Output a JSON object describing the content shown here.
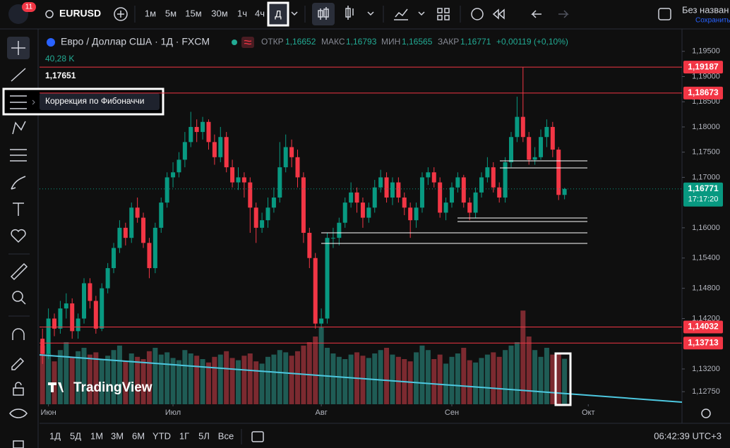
{
  "top_bar": {
    "badge": "11",
    "symbol": "EURUSD",
    "intervals": [
      "1м",
      "5м",
      "15м",
      "30м",
      "1ч",
      "4ч",
      "Д"
    ],
    "layout_name": "Без назван",
    "save": "Сохранить"
  },
  "legend": {
    "title": "Евро / Доллар США · 1Д · FXCM",
    "open_label": "ОТКР",
    "open": "1,16652",
    "high_label": "МАКС",
    "high": "1,16793",
    "low_label": "МИН",
    "low": "1,16565",
    "close_label": "ЗАКР",
    "close": "1,16771",
    "change": "+0,00119 (+0,10%)",
    "volume": "40,28 K",
    "crosshair_price": "1,17651"
  },
  "tooltip": "Коррекция по Фибоначчи",
  "watermark": "TradingView",
  "chart": {
    "type": "candlestick",
    "up_color": "#089981",
    "down_color": "#f23645",
    "ylim": [
      1.125,
      1.1993
    ],
    "yticks": [
      {
        "value": 1.195,
        "label": "1,19500"
      },
      {
        "value": 1.19,
        "label": "1,19000"
      },
      {
        "value": 1.185,
        "label": "1,18500"
      },
      {
        "value": 1.18,
        "label": "1,18000"
      },
      {
        "value": 1.175,
        "label": "1,17500"
      },
      {
        "value": 1.17,
        "label": "1,17000"
      },
      {
        "value": 1.16,
        "label": "1,16000"
      },
      {
        "value": 1.154,
        "label": "1,15400"
      },
      {
        "value": 1.148,
        "label": "1,14800"
      },
      {
        "value": 1.142,
        "label": "1,14200"
      },
      {
        "value": 1.132,
        "label": "1,13200"
      },
      {
        "value": 1.1275,
        "label": "1,12750"
      }
    ],
    "xlim": [
      -0.5,
      107.8
    ],
    "xticks": [
      {
        "value": 1,
        "label": "Июн"
      },
      {
        "value": 22,
        "label": "Июл"
      },
      {
        "value": 47,
        "label": "Авг"
      },
      {
        "value": 69,
        "label": "Сен"
      },
      {
        "value": 92,
        "label": "Окт"
      }
    ],
    "candles": [
      [
        1.138,
        1.14,
        1.133,
        1.135
      ],
      [
        1.135,
        1.144,
        1.134,
        1.142
      ],
      [
        1.142,
        1.143,
        1.1385,
        1.14
      ],
      [
        1.14,
        1.1455,
        1.139,
        1.144
      ],
      [
        1.144,
        1.147,
        1.142,
        1.145
      ],
      [
        1.145,
        1.146,
        1.138,
        1.1395
      ],
      [
        1.1395,
        1.143,
        1.138,
        1.142
      ],
      [
        1.142,
        1.15,
        1.141,
        1.149
      ],
      [
        1.149,
        1.15,
        1.144,
        1.1455
      ],
      [
        1.1455,
        1.1465,
        1.139,
        1.14
      ],
      [
        1.14,
        1.149,
        1.1395,
        1.148
      ],
      [
        1.148,
        1.153,
        1.147,
        1.152
      ],
      [
        1.152,
        1.157,
        1.151,
        1.156
      ],
      [
        1.156,
        1.1615,
        1.155,
        1.16
      ],
      [
        1.16,
        1.161,
        1.1565,
        1.158
      ],
      [
        1.158,
        1.165,
        1.157,
        1.164
      ],
      [
        1.164,
        1.166,
        1.161,
        1.162
      ],
      [
        1.162,
        1.163,
        1.156,
        1.157
      ],
      [
        1.157,
        1.158,
        1.15,
        1.152
      ],
      [
        1.152,
        1.161,
        1.151,
        1.16
      ],
      [
        1.16,
        1.166,
        1.159,
        1.165
      ],
      [
        1.165,
        1.171,
        1.164,
        1.17
      ],
      [
        1.17,
        1.173,
        1.168,
        1.171
      ],
      [
        1.171,
        1.175,
        1.17,
        1.1735
      ],
      [
        1.1735,
        1.179,
        1.172,
        1.177
      ],
      [
        1.177,
        1.183,
        1.176,
        1.18
      ],
      [
        1.18,
        1.1815,
        1.177,
        1.179
      ],
      [
        1.179,
        1.182,
        1.1775,
        1.181
      ],
      [
        1.181,
        1.1815,
        1.1755,
        1.177
      ],
      [
        1.177,
        1.1785,
        1.1725,
        1.174
      ],
      [
        1.174,
        1.18,
        1.173,
        1.178
      ],
      [
        1.178,
        1.179,
        1.171,
        1.172
      ],
      [
        1.172,
        1.1735,
        1.168,
        1.169
      ],
      [
        1.169,
        1.172,
        1.1675,
        1.17
      ],
      [
        1.17,
        1.171,
        1.166,
        1.169
      ],
      [
        1.169,
        1.17,
        1.159,
        1.164
      ],
      [
        1.164,
        1.165,
        1.157,
        1.16
      ],
      [
        1.16,
        1.163,
        1.159,
        1.1615
      ],
      [
        1.1615,
        1.166,
        1.16,
        1.164
      ],
      [
        1.164,
        1.168,
        1.163,
        1.166
      ],
      [
        1.166,
        1.177,
        1.165,
        1.172
      ],
      [
        1.172,
        1.1785,
        1.171,
        1.176
      ],
      [
        1.176,
        1.1775,
        1.172,
        1.174
      ],
      [
        1.174,
        1.1755,
        1.168,
        1.17
      ],
      [
        1.17,
        1.171,
        1.157,
        1.159
      ],
      [
        1.159,
        1.16,
        1.152,
        1.154
      ],
      [
        1.154,
        1.155,
        1.14,
        1.141
      ],
      [
        1.141,
        1.144,
        1.14,
        1.142
      ],
      [
        1.142,
        1.159,
        1.141,
        1.158
      ],
      [
        1.158,
        1.16,
        1.156,
        1.158
      ],
      [
        1.158,
        1.162,
        1.1565,
        1.161
      ],
      [
        1.161,
        1.166,
        1.16,
        1.165
      ],
      [
        1.165,
        1.169,
        1.164,
        1.167
      ],
      [
        1.167,
        1.168,
        1.163,
        1.165
      ],
      [
        1.165,
        1.166,
        1.16,
        1.162
      ],
      [
        1.162,
        1.165,
        1.161,
        1.164
      ],
      [
        1.164,
        1.1695,
        1.163,
        1.168
      ],
      [
        1.168,
        1.1715,
        1.167,
        1.17
      ],
      [
        1.17,
        1.171,
        1.165,
        1.166
      ],
      [
        1.166,
        1.17,
        1.1645,
        1.169
      ],
      [
        1.169,
        1.17,
        1.165,
        1.166
      ],
      [
        1.166,
        1.167,
        1.1625,
        1.164
      ],
      [
        1.164,
        1.165,
        1.158,
        1.1615
      ],
      [
        1.1615,
        1.165,
        1.16,
        1.164
      ],
      [
        1.164,
        1.171,
        1.163,
        1.17
      ],
      [
        1.17,
        1.172,
        1.1685,
        1.171
      ],
      [
        1.171,
        1.172,
        1.168,
        1.169
      ],
      [
        1.169,
        1.17,
        1.162,
        1.163
      ],
      [
        1.163,
        1.166,
        1.1615,
        1.165
      ],
      [
        1.165,
        1.169,
        1.164,
        1.168
      ],
      [
        1.168,
        1.171,
        1.167,
        1.17
      ],
      [
        1.17,
        1.1705,
        1.164,
        1.165
      ],
      [
        1.165,
        1.166,
        1.1615,
        1.163
      ],
      [
        1.163,
        1.168,
        1.162,
        1.167
      ],
      [
        1.167,
        1.171,
        1.166,
        1.17
      ],
      [
        1.17,
        1.174,
        1.169,
        1.172
      ],
      [
        1.172,
        1.173,
        1.167,
        1.168
      ],
      [
        1.168,
        1.169,
        1.165,
        1.166
      ],
      [
        1.166,
        1.174,
        1.165,
        1.173
      ],
      [
        1.173,
        1.179,
        1.172,
        1.178
      ],
      [
        1.178,
        1.186,
        1.177,
        1.182
      ],
      [
        1.182,
        1.19187,
        1.177,
        1.178
      ],
      [
        1.178,
        1.179,
        1.1725,
        1.1735
      ],
      [
        1.1735,
        1.176,
        1.1725,
        1.174
      ],
      [
        1.174,
        1.1795,
        1.1735,
        1.178
      ],
      [
        1.178,
        1.1815,
        1.176,
        1.18
      ],
      [
        1.18,
        1.181,
        1.174,
        1.1755
      ],
      [
        1.1755,
        1.176,
        1.1655,
        1.16652
      ],
      [
        1.16652,
        1.16793,
        1.16565,
        1.16771
      ]
    ],
    "volumes": [
      52,
      45,
      38,
      48,
      55,
      42,
      47,
      50,
      44,
      46,
      40,
      43,
      48,
      52,
      38,
      45,
      42,
      40,
      47,
      50,
      44,
      46,
      41,
      39,
      48,
      45,
      43,
      40,
      37,
      42,
      44,
      47,
      41,
      39,
      43,
      45,
      38,
      36,
      42,
      44,
      48,
      46,
      43,
      47,
      52,
      55,
      60,
      68,
      50,
      45,
      42,
      40,
      44,
      46,
      43,
      41,
      45,
      48,
      50,
      44,
      42,
      40,
      38,
      46,
      52,
      48,
      40,
      44,
      36,
      42,
      45,
      50,
      39,
      37,
      41,
      44,
      46,
      42,
      48,
      52,
      55,
      83,
      60,
      48,
      42,
      50,
      44,
      45,
      40.28
    ],
    "levels": [
      {
        "value": 1.19187,
        "label": "1,19187"
      },
      {
        "value": 1.18673,
        "label": "1,18673"
      },
      {
        "value": 1.14032,
        "label": "1,14032"
      },
      {
        "value": 1.13713,
        "label": "1,13713"
      }
    ],
    "last_price": {
      "value": 1.16771,
      "label": "1,16771"
    },
    "countdown": "17:17:20"
  },
  "bottom_bar": {
    "ranges": [
      "1Д",
      "5Д",
      "1М",
      "3М",
      "6М",
      "YTD",
      "1Г",
      "5Л",
      "Все"
    ],
    "clock": "06:42:39 UTC+3"
  }
}
